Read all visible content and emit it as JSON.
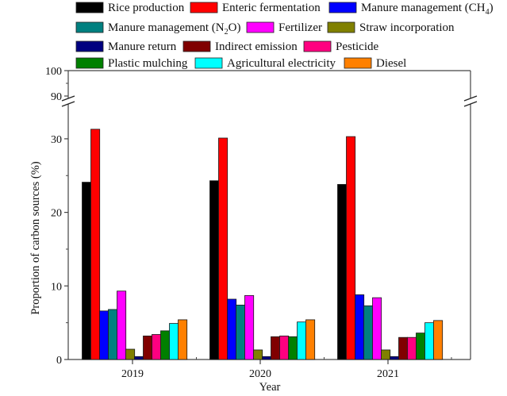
{
  "chart_data": {
    "type": "bar",
    "title": "",
    "xlabel": "Year",
    "ylabel": "Proportion of  carbon sources (%)",
    "categories": [
      "2019",
      "2020",
      "2021"
    ],
    "ylim": [
      0,
      100
    ],
    "y_break": [
      33.5,
      88
    ],
    "yticks_lower": [
      "0",
      "10",
      "20",
      "30"
    ],
    "yticks_upper": [
      "90",
      "100"
    ],
    "grid": false,
    "legend_position": "top",
    "series": [
      {
        "name": "Rice production",
        "name_html": "Rice production",
        "color": "#000000",
        "values": [
          24.1,
          24.3,
          23.8
        ]
      },
      {
        "name": "Enteric fermentation",
        "name_html": "Enteric fermentation",
        "color": "#ff0000",
        "values": [
          31.3,
          30.1,
          30.3
        ]
      },
      {
        "name": "Manure management (CH4)",
        "name_main": "Manure management (CH",
        "name_sub": "4",
        "name_end": ")",
        "color": "#0000ff",
        "values": [
          6.6,
          8.2,
          8.8
        ]
      },
      {
        "name": "Manure management (N2O)",
        "name_main": "Manure management (N",
        "name_sub": "2",
        "name_end": "O)",
        "color": "#008080",
        "values": [
          6.8,
          7.4,
          7.3
        ]
      },
      {
        "name": "Fertilizer",
        "name_html": "Fertilizer",
        "color": "#ff00ff",
        "values": [
          9.3,
          8.7,
          8.4
        ]
      },
      {
        "name": "Straw incorporation",
        "name_html": "Straw incorporation",
        "color": "#808000",
        "values": [
          1.4,
          1.3,
          1.3
        ]
      },
      {
        "name": "Manure return",
        "name_html": "Manure return",
        "color": "#000080",
        "values": [
          0.4,
          0.4,
          0.4
        ]
      },
      {
        "name": "Indirect emission",
        "name_html": "Indirect emission",
        "color": "#800000",
        "values": [
          3.2,
          3.1,
          3.0
        ]
      },
      {
        "name": "Pesticide",
        "name_html": "Pesticide",
        "color": "#ff0080",
        "values": [
          3.4,
          3.2,
          3.0
        ]
      },
      {
        "name": "Plastic mulching",
        "name_html": "Plastic mulching",
        "color": "#008000",
        "values": [
          3.9,
          3.1,
          3.6
        ]
      },
      {
        "name": "Agricultural electricity",
        "name_html": "Agricultural electricity",
        "color": "#00ffff",
        "values": [
          4.9,
          5.1,
          5.0
        ]
      },
      {
        "name": "Diesel",
        "name_html": "Diesel",
        "color": "#ff8000",
        "values": [
          5.4,
          5.4,
          5.3
        ]
      }
    ]
  }
}
